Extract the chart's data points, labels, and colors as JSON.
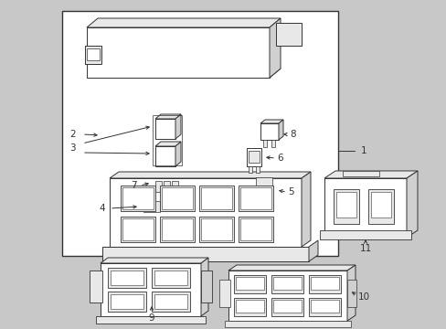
{
  "bg_color": "#c8c8c8",
  "fig_bg": "#c8c8c8",
  "line_color": "#333333",
  "white": "#ffffff",
  "light_gray": "#e8e8e8",
  "mid_gray": "#d0d0d0",
  "dark_gray": "#b0b0b0",
  "fig_width": 4.89,
  "fig_height": 3.6,
  "dpi": 100,
  "font_size": 7.5
}
